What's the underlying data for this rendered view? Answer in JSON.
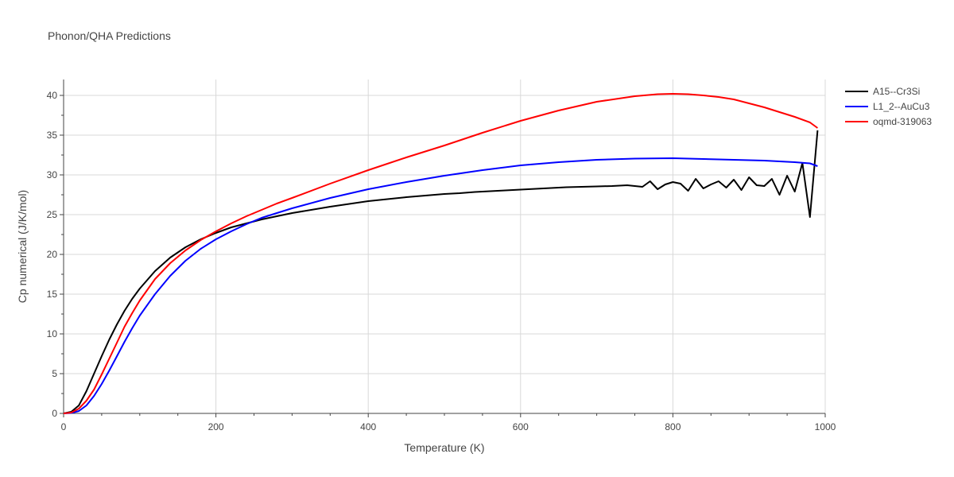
{
  "chart_data": {
    "type": "line",
    "title": "Phonon/QHA Predictions",
    "xlabel": "Temperature (K)",
    "ylabel": "Cp numerical (J/K/mol)",
    "xlim": [
      0,
      1000
    ],
    "ylim": [
      0,
      42
    ],
    "xticks": [
      0,
      200,
      400,
      600,
      800,
      1000
    ],
    "yticks": [
      0,
      5,
      10,
      15,
      20,
      25,
      30,
      35,
      40
    ],
    "grid": true,
    "legend_position": "top-right",
    "series": [
      {
        "name": "A15--Cr3Si",
        "color": "#000000",
        "x": [
          0,
          10,
          20,
          30,
          40,
          50,
          60,
          70,
          80,
          90,
          100,
          120,
          140,
          160,
          180,
          200,
          220,
          240,
          260,
          280,
          300,
          350,
          400,
          450,
          500,
          520,
          540,
          560,
          580,
          600,
          620,
          640,
          660,
          680,
          700,
          720,
          740,
          760,
          770,
          780,
          790,
          800,
          810,
          820,
          830,
          840,
          850,
          860,
          870,
          880,
          890,
          900,
          910,
          920,
          930,
          940,
          950,
          960,
          970,
          980,
          990
        ],
        "values": [
          0,
          0.2,
          1.0,
          2.8,
          5.0,
          7.2,
          9.3,
          11.2,
          12.9,
          14.4,
          15.7,
          17.9,
          19.6,
          20.9,
          21.9,
          22.7,
          23.4,
          23.9,
          24.4,
          24.8,
          25.2,
          26.0,
          26.7,
          27.2,
          27.6,
          27.7,
          27.85,
          27.95,
          28.05,
          28.15,
          28.25,
          28.35,
          28.45,
          28.5,
          28.55,
          28.6,
          28.7,
          28.5,
          29.2,
          28.2,
          28.8,
          29.1,
          28.9,
          28.0,
          29.5,
          28.3,
          28.8,
          29.2,
          28.4,
          29.4,
          28.1,
          29.7,
          28.7,
          28.6,
          29.5,
          27.5,
          29.9,
          27.9,
          31.5,
          24.7,
          35.6
        ]
      },
      {
        "name": "L1_2--AuCu3",
        "color": "#0000ff",
        "x": [
          0,
          10,
          20,
          30,
          40,
          50,
          60,
          70,
          80,
          90,
          100,
          120,
          140,
          160,
          180,
          200,
          220,
          240,
          260,
          280,
          300,
          350,
          400,
          450,
          500,
          550,
          600,
          650,
          700,
          750,
          800,
          820,
          840,
          860,
          880,
          900,
          920,
          940,
          960,
          980,
          990
        ],
        "values": [
          0,
          0.05,
          0.3,
          1.0,
          2.2,
          3.7,
          5.4,
          7.2,
          9.0,
          10.7,
          12.3,
          15.0,
          17.3,
          19.2,
          20.7,
          21.9,
          22.9,
          23.8,
          24.6,
          25.2,
          25.8,
          27.1,
          28.2,
          29.1,
          29.9,
          30.6,
          31.2,
          31.6,
          31.9,
          32.05,
          32.1,
          32.05,
          32.0,
          31.95,
          31.9,
          31.85,
          31.8,
          31.7,
          31.6,
          31.45,
          31.1
        ]
      },
      {
        "name": "oqmd-319063",
        "color": "#ff0000",
        "x": [
          0,
          10,
          20,
          30,
          40,
          50,
          60,
          70,
          80,
          90,
          100,
          120,
          140,
          160,
          180,
          200,
          220,
          240,
          260,
          280,
          300,
          350,
          400,
          450,
          500,
          550,
          600,
          650,
          700,
          750,
          780,
          800,
          820,
          840,
          860,
          880,
          900,
          920,
          940,
          960,
          980,
          990
        ],
        "values": [
          0,
          0.1,
          0.6,
          1.6,
          3.0,
          4.9,
          6.9,
          8.9,
          10.9,
          12.6,
          14.2,
          16.9,
          18.9,
          20.5,
          21.8,
          22.9,
          23.9,
          24.8,
          25.6,
          26.4,
          27.1,
          28.9,
          30.6,
          32.2,
          33.7,
          35.3,
          36.8,
          38.1,
          39.2,
          39.9,
          40.15,
          40.2,
          40.15,
          40.0,
          39.8,
          39.5,
          39.0,
          38.5,
          37.9,
          37.3,
          36.6,
          35.9
        ]
      }
    ]
  }
}
